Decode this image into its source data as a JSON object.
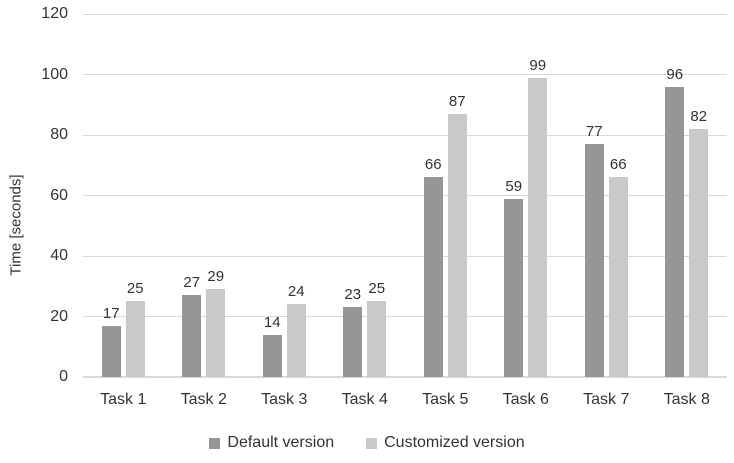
{
  "chart_data": {
    "type": "bar",
    "title": "",
    "categories": [
      "Task 1",
      "Task 2",
      "Task 3",
      "Task 4",
      "Task 5",
      "Task 6",
      "Task 7",
      "Task 8"
    ],
    "series": [
      {
        "name": "Default version",
        "color": "#969696",
        "values": [
          17,
          27,
          14,
          23,
          66,
          59,
          77,
          96
        ]
      },
      {
        "name": "Customized version",
        "color": "#c9c9c9",
        "values": [
          25,
          29,
          24,
          25,
          87,
          99,
          66,
          82
        ]
      }
    ],
    "xlabel": "",
    "ylabel": "Time [seconds]",
    "yticks": [
      0,
      20,
      40,
      60,
      80,
      100,
      120
    ],
    "ylim": [
      0,
      120
    ],
    "grid": true,
    "data_labels": true,
    "legend_position": "bottom",
    "colors": {
      "gridline": "#d9d9d9",
      "axis_line": "#d9d9d9",
      "text": "#333333",
      "background": "#ffffff"
    }
  }
}
